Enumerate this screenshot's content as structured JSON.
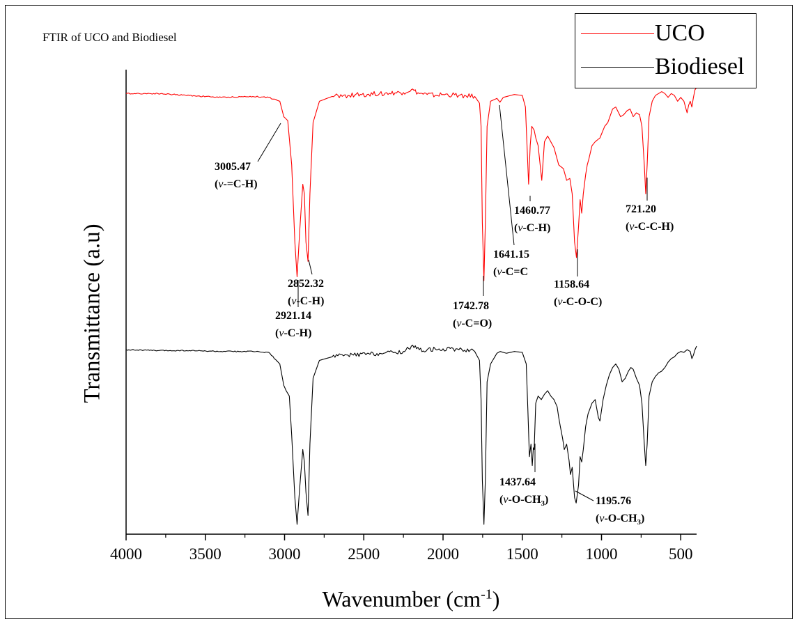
{
  "chart_data": {
    "type": "line",
    "title": "FTIR of UCO and Biodiesel",
    "xlabel": "Wavenumber (cm",
    "xlabel_sup": "-1",
    "xlabel_end": ")",
    "ylabel": "Transmittance (a.u)",
    "xlim": [
      4000,
      400
    ],
    "x_reversed": true,
    "xticks": [
      "4000",
      "3500",
      "3000",
      "2500",
      "2000",
      "1500",
      "1000",
      "500"
    ],
    "grid": false,
    "legend_placement": "top-right",
    "series": [
      {
        "name": "UCO",
        "color": "#ff0000",
        "offset": "upper",
        "points": [
          [
            4000,
            0.97
          ],
          [
            3800,
            0.97
          ],
          [
            3600,
            0.96
          ],
          [
            3400,
            0.95
          ],
          [
            3200,
            0.955
          ],
          [
            3100,
            0.95
          ],
          [
            3030,
            0.93
          ],
          [
            3005,
            0.85
          ],
          [
            2980,
            0.83
          ],
          [
            2955,
            0.6
          ],
          [
            2935,
            0.2
          ],
          [
            2921,
            0.02
          ],
          [
            2905,
            0.25
          ],
          [
            2885,
            0.5
          ],
          [
            2875,
            0.45
          ],
          [
            2865,
            0.2
          ],
          [
            2852,
            0.1
          ],
          [
            2840,
            0.45
          ],
          [
            2820,
            0.82
          ],
          [
            2780,
            0.93
          ],
          [
            2700,
            0.955
          ],
          [
            2600,
            0.96
          ],
          [
            2400,
            0.97
          ],
          [
            2250,
            0.975
          ],
          [
            2200,
            0.99
          ],
          [
            2150,
            0.97
          ],
          [
            2100,
            0.965
          ],
          [
            2050,
            0.96
          ],
          [
            2000,
            0.965
          ],
          [
            1900,
            0.96
          ],
          [
            1800,
            0.955
          ],
          [
            1770,
            0.92
          ],
          [
            1760,
            0.8
          ],
          [
            1752,
            0.3
          ],
          [
            1742,
            0.0
          ],
          [
            1733,
            0.3
          ],
          [
            1722,
            0.8
          ],
          [
            1700,
            0.93
          ],
          [
            1660,
            0.945
          ],
          [
            1641,
            0.925
          ],
          [
            1620,
            0.95
          ],
          [
            1550,
            0.965
          ],
          [
            1500,
            0.96
          ],
          [
            1480,
            0.9
          ],
          [
            1470,
            0.7
          ],
          [
            1460,
            0.5
          ],
          [
            1450,
            0.7
          ],
          [
            1440,
            0.8
          ],
          [
            1425,
            0.78
          ],
          [
            1415,
            0.74
          ],
          [
            1400,
            0.7
          ],
          [
            1377,
            0.52
          ],
          [
            1360,
            0.72
          ],
          [
            1340,
            0.75
          ],
          [
            1320,
            0.72
          ],
          [
            1300,
            0.69
          ],
          [
            1270,
            0.6
          ],
          [
            1240,
            0.58
          ],
          [
            1220,
            0.52
          ],
          [
            1200,
            0.53
          ],
          [
            1185,
            0.45
          ],
          [
            1170,
            0.2
          ],
          [
            1158,
            0.12
          ],
          [
            1145,
            0.28
          ],
          [
            1135,
            0.42
          ],
          [
            1125,
            0.35
          ],
          [
            1115,
            0.45
          ],
          [
            1100,
            0.55
          ],
          [
            1090,
            0.6
          ],
          [
            1080,
            0.63
          ],
          [
            1060,
            0.7
          ],
          [
            1040,
            0.72
          ],
          [
            1010,
            0.74
          ],
          [
            980,
            0.8
          ],
          [
            960,
            0.82
          ],
          [
            930,
            0.89
          ],
          [
            910,
            0.9
          ],
          [
            880,
            0.85
          ],
          [
            860,
            0.86
          ],
          [
            840,
            0.88
          ],
          [
            820,
            0.89
          ],
          [
            800,
            0.85
          ],
          [
            780,
            0.87
          ],
          [
            760,
            0.86
          ],
          [
            745,
            0.8
          ],
          [
            730,
            0.6
          ],
          [
            721,
            0.45
          ],
          [
            712,
            0.6
          ],
          [
            700,
            0.85
          ],
          [
            680,
            0.93
          ],
          [
            660,
            0.96
          ],
          [
            640,
            0.97
          ],
          [
            620,
            0.98
          ],
          [
            600,
            0.97
          ],
          [
            580,
            0.95
          ],
          [
            560,
            0.97
          ],
          [
            540,
            0.96
          ],
          [
            520,
            0.93
          ],
          [
            500,
            0.95
          ],
          [
            480,
            0.93
          ],
          [
            460,
            0.87
          ],
          [
            450,
            0.91
          ],
          [
            440,
            0.93
          ],
          [
            430,
            0.9
          ],
          [
            420,
            0.95
          ],
          [
            410,
            0.99
          ],
          [
            400,
            1.0
          ]
        ]
      },
      {
        "name": "Biodiesel",
        "color": "#000000",
        "offset": "lower",
        "points": [
          [
            4000,
            0.98
          ],
          [
            3800,
            0.975
          ],
          [
            3600,
            0.975
          ],
          [
            3400,
            0.97
          ],
          [
            3200,
            0.97
          ],
          [
            3100,
            0.965
          ],
          [
            3030,
            0.9
          ],
          [
            3005,
            0.78
          ],
          [
            2990,
            0.75
          ],
          [
            2970,
            0.72
          ],
          [
            2955,
            0.5
          ],
          [
            2935,
            0.15
          ],
          [
            2921,
            0.0
          ],
          [
            2905,
            0.2
          ],
          [
            2885,
            0.42
          ],
          [
            2875,
            0.35
          ],
          [
            2865,
            0.18
          ],
          [
            2852,
            0.05
          ],
          [
            2840,
            0.45
          ],
          [
            2820,
            0.82
          ],
          [
            2780,
            0.92
          ],
          [
            2700,
            0.94
          ],
          [
            2600,
            0.95
          ],
          [
            2400,
            0.96
          ],
          [
            2250,
            0.97
          ],
          [
            2200,
            1.0
          ],
          [
            2150,
            0.98
          ],
          [
            2100,
            0.98
          ],
          [
            2050,
            0.985
          ],
          [
            2000,
            0.985
          ],
          [
            1900,
            0.98
          ],
          [
            1800,
            0.97
          ],
          [
            1770,
            0.92
          ],
          [
            1760,
            0.7
          ],
          [
            1752,
            0.25
          ],
          [
            1742,
            0.0
          ],
          [
            1733,
            0.25
          ],
          [
            1722,
            0.8
          ],
          [
            1700,
            0.9
          ],
          [
            1680,
            0.93
          ],
          [
            1660,
            0.96
          ],
          [
            1640,
            0.97
          ],
          [
            1600,
            0.96
          ],
          [
            1550,
            0.97
          ],
          [
            1500,
            0.965
          ],
          [
            1475,
            0.9
          ],
          [
            1465,
            0.65
          ],
          [
            1455,
            0.38
          ],
          [
            1445,
            0.45
          ],
          [
            1437,
            0.33
          ],
          [
            1430,
            0.43
          ],
          [
            1425,
            0.42
          ],
          [
            1415,
            0.68
          ],
          [
            1400,
            0.72
          ],
          [
            1380,
            0.7
          ],
          [
            1360,
            0.73
          ],
          [
            1340,
            0.75
          ],
          [
            1320,
            0.72
          ],
          [
            1300,
            0.7
          ],
          [
            1280,
            0.66
          ],
          [
            1270,
            0.6
          ],
          [
            1260,
            0.55
          ],
          [
            1245,
            0.48
          ],
          [
            1235,
            0.42
          ],
          [
            1220,
            0.45
          ],
          [
            1205,
            0.36
          ],
          [
            1196,
            0.28
          ],
          [
            1185,
            0.32
          ],
          [
            1170,
            0.15
          ],
          [
            1160,
            0.12
          ],
          [
            1145,
            0.22
          ],
          [
            1135,
            0.38
          ],
          [
            1125,
            0.35
          ],
          [
            1115,
            0.42
          ],
          [
            1100,
            0.55
          ],
          [
            1085,
            0.62
          ],
          [
            1060,
            0.68
          ],
          [
            1040,
            0.7
          ],
          [
            1020,
            0.6
          ],
          [
            1010,
            0.58
          ],
          [
            990,
            0.7
          ],
          [
            970,
            0.78
          ],
          [
            950,
            0.84
          ],
          [
            930,
            0.88
          ],
          [
            910,
            0.9
          ],
          [
            890,
            0.87
          ],
          [
            870,
            0.8
          ],
          [
            850,
            0.82
          ],
          [
            830,
            0.86
          ],
          [
            815,
            0.88
          ],
          [
            800,
            0.87
          ],
          [
            780,
            0.82
          ],
          [
            760,
            0.78
          ],
          [
            745,
            0.68
          ],
          [
            730,
            0.45
          ],
          [
            721,
            0.33
          ],
          [
            712,
            0.45
          ],
          [
            700,
            0.72
          ],
          [
            680,
            0.8
          ],
          [
            660,
            0.83
          ],
          [
            640,
            0.85
          ],
          [
            620,
            0.86
          ],
          [
            600,
            0.88
          ],
          [
            580,
            0.91
          ],
          [
            560,
            0.93
          ],
          [
            540,
            0.94
          ],
          [
            520,
            0.96
          ],
          [
            500,
            0.97
          ],
          [
            480,
            0.965
          ],
          [
            460,
            0.98
          ],
          [
            450,
            0.975
          ],
          [
            440,
            0.97
          ],
          [
            430,
            0.93
          ],
          [
            420,
            0.95
          ],
          [
            410,
            0.98
          ],
          [
            400,
            1.0
          ]
        ]
      }
    ],
    "annotations": [
      {
        "series": "UCO",
        "x": 3005.47,
        "value": "3005.47",
        "mode": "(v-=C-H)"
      },
      {
        "series": "UCO",
        "x": 2921.14,
        "value": "2921.14",
        "mode": "(v-C-H)"
      },
      {
        "series": "UCO",
        "x": 2852.32,
        "value": "2852.32",
        "mode": "(v-C-H)"
      },
      {
        "series": "UCO",
        "x": 1742.78,
        "value": "1742.78",
        "mode": "(v-C=O)"
      },
      {
        "series": "UCO",
        "x": 1641.15,
        "value": "1641.15",
        "mode": "(v-C=C"
      },
      {
        "series": "UCO",
        "x": 1460.77,
        "value": "1460.77",
        "mode": "(v-C-H)"
      },
      {
        "series": "UCO",
        "x": 1158.64,
        "value": "1158.64",
        "mode": "(v-C-O-C)"
      },
      {
        "series": "UCO",
        "x": 721.2,
        "value": "721.20",
        "mode": "(v-C-C-H)"
      },
      {
        "series": "Biodiesel",
        "x": 1437.64,
        "value": "1437.64",
        "mode": "(v-O-CH",
        "sub": "3",
        "end": ")"
      },
      {
        "series": "Biodiesel",
        "x": 1195.76,
        "value": "1195.76",
        "mode": "(v-O-CH",
        "sub": "3",
        "end": ")"
      }
    ]
  }
}
